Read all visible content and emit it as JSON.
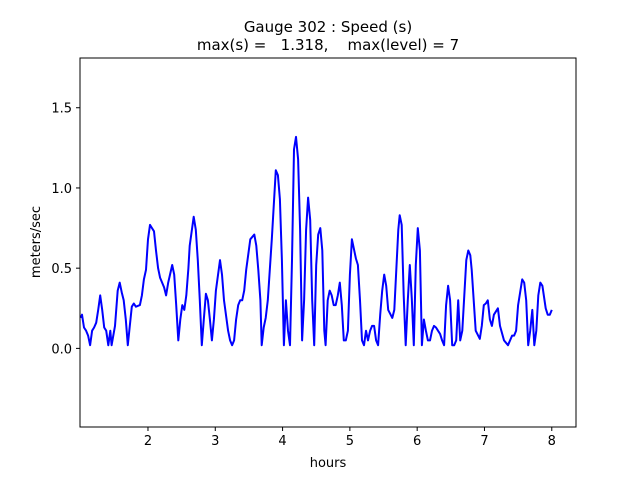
{
  "chart_data": {
    "type": "line",
    "title": "Gauge 302 : Speed (s)",
    "subtitle": "max(s) =   1.318,    max(level) = 7",
    "xlabel": "hours",
    "ylabel": "meters/sec",
    "xlim": [
      0.99,
      8.36
    ],
    "ylim": [
      -0.49,
      1.81
    ],
    "xticks": [
      2,
      3,
      4,
      5,
      6,
      7,
      8
    ],
    "xtick_labels": [
      "2",
      "3",
      "4",
      "5",
      "6",
      "7",
      "8"
    ],
    "yticks": [
      0.0,
      0.5,
      1.0,
      1.5
    ],
    "ytick_labels": [
      "0.0",
      "0.5",
      "1.0",
      "1.5"
    ],
    "grid": false,
    "series": [
      {
        "name": "speed",
        "color": "#0000ff",
        "points": [
          [
            1.0,
            0.19
          ],
          [
            1.02,
            0.21
          ],
          [
            1.05,
            0.13
          ],
          [
            1.08,
            0.11
          ],
          [
            1.11,
            0.08
          ],
          [
            1.14,
            0.02
          ],
          [
            1.17,
            0.11
          ],
          [
            1.2,
            0.13
          ],
          [
            1.23,
            0.16
          ],
          [
            1.26,
            0.24
          ],
          [
            1.29,
            0.33
          ],
          [
            1.32,
            0.24
          ],
          [
            1.35,
            0.13
          ],
          [
            1.38,
            0.11
          ],
          [
            1.41,
            0.02
          ],
          [
            1.44,
            0.11
          ],
          [
            1.46,
            0.02
          ],
          [
            1.51,
            0.14
          ],
          [
            1.55,
            0.36
          ],
          [
            1.58,
            0.41
          ],
          [
            1.61,
            0.35
          ],
          [
            1.64,
            0.3
          ],
          [
            1.67,
            0.18
          ],
          [
            1.7,
            0.02
          ],
          [
            1.73,
            0.14
          ],
          [
            1.76,
            0.26
          ],
          [
            1.79,
            0.28
          ],
          [
            1.82,
            0.26
          ],
          [
            1.88,
            0.27
          ],
          [
            1.91,
            0.33
          ],
          [
            1.94,
            0.43
          ],
          [
            1.97,
            0.49
          ],
          [
            2.0,
            0.68
          ],
          [
            2.03,
            0.77
          ],
          [
            2.06,
            0.75
          ],
          [
            2.09,
            0.73
          ],
          [
            2.12,
            0.61
          ],
          [
            2.15,
            0.5
          ],
          [
            2.18,
            0.44
          ],
          [
            2.24,
            0.38
          ],
          [
            2.27,
            0.33
          ],
          [
            2.3,
            0.41
          ],
          [
            2.36,
            0.52
          ],
          [
            2.39,
            0.46
          ],
          [
            2.42,
            0.27
          ],
          [
            2.45,
            0.05
          ],
          [
            2.48,
            0.18
          ],
          [
            2.51,
            0.27
          ],
          [
            2.54,
            0.24
          ],
          [
            2.57,
            0.33
          ],
          [
            2.6,
            0.5
          ],
          [
            2.62,
            0.64
          ],
          [
            2.68,
            0.82
          ],
          [
            2.71,
            0.74
          ],
          [
            2.74,
            0.55
          ],
          [
            2.77,
            0.3
          ],
          [
            2.8,
            0.02
          ],
          [
            2.83,
            0.18
          ],
          [
            2.86,
            0.34
          ],
          [
            2.89,
            0.3
          ],
          [
            2.92,
            0.18
          ],
          [
            2.95,
            0.05
          ],
          [
            2.98,
            0.18
          ],
          [
            3.01,
            0.36
          ],
          [
            3.07,
            0.55
          ],
          [
            3.1,
            0.46
          ],
          [
            3.13,
            0.3
          ],
          [
            3.19,
            0.11
          ],
          [
            3.22,
            0.05
          ],
          [
            3.25,
            0.02
          ],
          [
            3.28,
            0.05
          ],
          [
            3.31,
            0.18
          ],
          [
            3.34,
            0.27
          ],
          [
            3.37,
            0.3
          ],
          [
            3.4,
            0.3
          ],
          [
            3.43,
            0.36
          ],
          [
            3.46,
            0.49
          ],
          [
            3.52,
            0.68
          ],
          [
            3.58,
            0.71
          ],
          [
            3.61,
            0.64
          ],
          [
            3.64,
            0.49
          ],
          [
            3.67,
            0.3
          ],
          [
            3.69,
            0.02
          ],
          [
            3.72,
            0.13
          ],
          [
            3.75,
            0.19
          ],
          [
            3.78,
            0.3
          ],
          [
            3.84,
            0.68
          ],
          [
            3.9,
            1.11
          ],
          [
            3.93,
            1.08
          ],
          [
            3.96,
            0.93
          ],
          [
            3.99,
            0.55
          ],
          [
            4.02,
            0.02
          ],
          [
            4.05,
            0.3
          ],
          [
            4.08,
            0.11
          ],
          [
            4.11,
            0.02
          ],
          [
            4.14,
            0.55
          ],
          [
            4.17,
            1.24
          ],
          [
            4.2,
            1.318
          ],
          [
            4.23,
            1.18
          ],
          [
            4.26,
            0.74
          ],
          [
            4.29,
            0.05
          ],
          [
            4.32,
            0.3
          ],
          [
            4.35,
            0.74
          ],
          [
            4.38,
            0.94
          ],
          [
            4.41,
            0.8
          ],
          [
            4.44,
            0.3
          ],
          [
            4.47,
            0.02
          ],
          [
            4.5,
            0.52
          ],
          [
            4.53,
            0.71
          ],
          [
            4.56,
            0.75
          ],
          [
            4.59,
            0.61
          ],
          [
            4.62,
            0.11
          ],
          [
            4.64,
            0.02
          ],
          [
            4.67,
            0.3
          ],
          [
            4.7,
            0.36
          ],
          [
            4.73,
            0.33
          ],
          [
            4.76,
            0.27
          ],
          [
            4.79,
            0.27
          ],
          [
            4.82,
            0.33
          ],
          [
            4.85,
            0.41
          ],
          [
            4.88,
            0.27
          ],
          [
            4.91,
            0.05
          ],
          [
            4.94,
            0.05
          ],
          [
            4.97,
            0.11
          ],
          [
            5.0,
            0.46
          ],
          [
            5.03,
            0.68
          ],
          [
            5.09,
            0.56
          ],
          [
            5.12,
            0.52
          ],
          [
            5.15,
            0.3
          ],
          [
            5.18,
            0.05
          ],
          [
            5.21,
            0.02
          ],
          [
            5.24,
            0.11
          ],
          [
            5.27,
            0.05
          ],
          [
            5.3,
            0.11
          ],
          [
            5.33,
            0.14
          ],
          [
            5.36,
            0.14
          ],
          [
            5.39,
            0.05
          ],
          [
            5.42,
            0.02
          ],
          [
            5.45,
            0.21
          ],
          [
            5.48,
            0.36
          ],
          [
            5.51,
            0.46
          ],
          [
            5.54,
            0.39
          ],
          [
            5.57,
            0.24
          ],
          [
            5.63,
            0.19
          ],
          [
            5.66,
            0.24
          ],
          [
            5.69,
            0.49
          ],
          [
            5.72,
            0.74
          ],
          [
            5.74,
            0.83
          ],
          [
            5.77,
            0.77
          ],
          [
            5.8,
            0.33
          ],
          [
            5.83,
            0.02
          ],
          [
            5.86,
            0.3
          ],
          [
            5.89,
            0.52
          ],
          [
            5.92,
            0.31
          ],
          [
            5.95,
            0.02
          ],
          [
            5.98,
            0.52
          ],
          [
            6.01,
            0.75
          ],
          [
            6.04,
            0.61
          ],
          [
            6.07,
            0.02
          ],
          [
            6.1,
            0.18
          ],
          [
            6.13,
            0.11
          ],
          [
            6.16,
            0.05
          ],
          [
            6.19,
            0.05
          ],
          [
            6.22,
            0.11
          ],
          [
            6.25,
            0.14
          ],
          [
            6.28,
            0.13
          ],
          [
            6.31,
            0.11
          ],
          [
            6.34,
            0.09
          ],
          [
            6.37,
            0.05
          ],
          [
            6.4,
            0.02
          ],
          [
            6.43,
            0.27
          ],
          [
            6.46,
            0.39
          ],
          [
            6.49,
            0.3
          ],
          [
            6.52,
            0.02
          ],
          [
            6.55,
            0.02
          ],
          [
            6.58,
            0.05
          ],
          [
            6.61,
            0.3
          ],
          [
            6.64,
            0.05
          ],
          [
            6.67,
            0.11
          ],
          [
            6.73,
            0.55
          ],
          [
            6.76,
            0.61
          ],
          [
            6.79,
            0.58
          ],
          [
            6.81,
            0.49
          ],
          [
            6.84,
            0.3
          ],
          [
            6.87,
            0.11
          ],
          [
            6.93,
            0.06
          ],
          [
            6.96,
            0.14
          ],
          [
            6.99,
            0.27
          ],
          [
            7.02,
            0.28
          ],
          [
            7.05,
            0.3
          ],
          [
            7.08,
            0.18
          ],
          [
            7.11,
            0.14
          ],
          [
            7.14,
            0.21
          ],
          [
            7.2,
            0.25
          ],
          [
            7.23,
            0.14
          ],
          [
            7.29,
            0.05
          ],
          [
            7.35,
            0.02
          ],
          [
            7.41,
            0.08
          ],
          [
            7.44,
            0.08
          ],
          [
            7.47,
            0.11
          ],
          [
            7.5,
            0.27
          ],
          [
            7.56,
            0.43
          ],
          [
            7.59,
            0.41
          ],
          [
            7.62,
            0.3
          ],
          [
            7.65,
            0.02
          ],
          [
            7.68,
            0.11
          ],
          [
            7.71,
            0.24
          ],
          [
            7.74,
            0.02
          ],
          [
            7.77,
            0.11
          ],
          [
            7.8,
            0.33
          ],
          [
            7.83,
            0.41
          ],
          [
            7.86,
            0.39
          ],
          [
            7.91,
            0.25
          ],
          [
            7.94,
            0.21
          ],
          [
            7.97,
            0.21
          ],
          [
            8.0,
            0.24
          ]
        ]
      }
    ]
  }
}
